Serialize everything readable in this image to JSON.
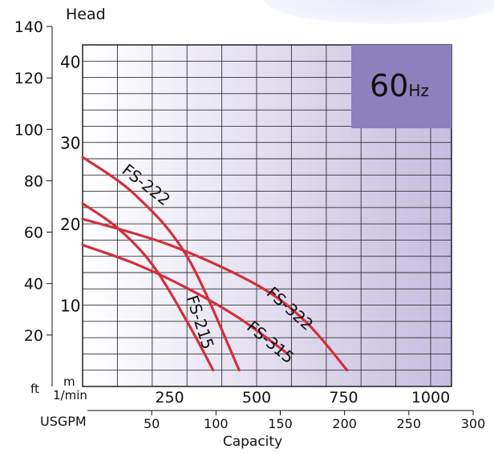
{
  "chart_data": {
    "type": "line",
    "title": "",
    "ylabel": "Head",
    "xlabel": "Capacity",
    "badge": {
      "number": "60",
      "unit": "Hz"
    },
    "colors": {
      "curve": "#d32f3a",
      "badge": "#8e7fbd",
      "grid": "#333333",
      "grad_start": "#ffffff",
      "grad_end": "#c6bde0"
    },
    "ft_axis": {
      "unit": "ft",
      "ticks": [
        "20",
        "40",
        "60",
        "80",
        "100",
        "120",
        "140"
      ],
      "range": [
        0,
        140
      ]
    },
    "m_axis": {
      "unit": "m",
      "ticks": [
        "10",
        "20",
        "30",
        "40"
      ],
      "range": [
        0,
        43
      ]
    },
    "lpm_axis": {
      "unit": "1/min",
      "ticks": [
        "250",
        "500",
        "750",
        "1000"
      ],
      "range": [
        0,
        1000
      ]
    },
    "gpm_axis": {
      "unit": "USGPM",
      "ticks": [
        "50",
        "100",
        "150",
        "200",
        "250",
        "300"
      ],
      "range": [
        0,
        300
      ]
    },
    "grid": true,
    "series": [
      {
        "name": "FS-222",
        "x": [
          0,
          150,
          300,
          450
        ],
        "y": [
          28.2,
          23.6,
          16,
          2
        ]
      },
      {
        "name": "FS-215",
        "x": [
          0,
          100,
          200,
          300,
          375
        ],
        "y": [
          22.5,
          19.5,
          15,
          8,
          2
        ]
      },
      {
        "name": "FS-322",
        "x": [
          0,
          250,
          500,
          640,
          760
        ],
        "y": [
          20.6,
          17.4,
          12.5,
          8,
          2
        ]
      },
      {
        "name": "FS-315",
        "x": [
          0,
          150,
          300,
          450,
          590
        ],
        "y": [
          17.4,
          15.1,
          12.1,
          8.4,
          4
        ]
      }
    ]
  }
}
